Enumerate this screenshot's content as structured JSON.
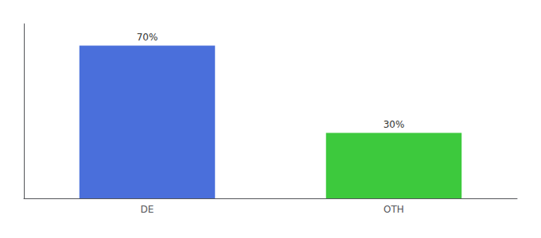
{
  "chart_data": {
    "type": "bar",
    "categories": [
      "DE",
      "OTH"
    ],
    "values": [
      70,
      30
    ],
    "value_labels": [
      "70%",
      "30%"
    ],
    "colors": [
      "#4a6fdb",
      "#3dc93d"
    ],
    "ylim": [
      0,
      80
    ],
    "data_labels": true,
    "tick_labels": "x",
    "grid": false
  }
}
